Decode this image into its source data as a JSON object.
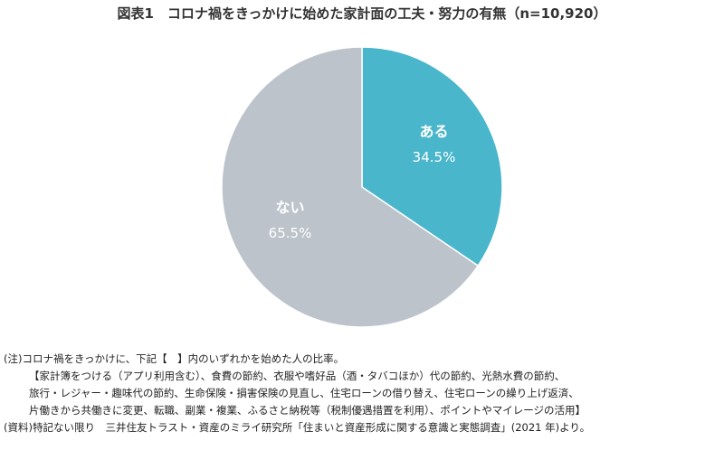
{
  "title": "図表1　コロナ禍をきっかけに始めた家計面の工夫・努力の有無（n=10,920）",
  "chart_data": {
    "type": "pie",
    "title": "図表1　コロナ禍をきっかけに始めた家計面の工夫・努力の有無（n=10,920）",
    "slices": [
      {
        "label": "ある",
        "value": 34.5,
        "value_label": "34.5%",
        "color": "#4ab6cb"
      },
      {
        "label": "ない",
        "value": 65.5,
        "value_label": "65.5%",
        "color": "#bcc3cb"
      }
    ],
    "start": "12 o'clock",
    "direction": "clockwise",
    "legend": "none"
  },
  "notes": {
    "line1": "(注)コロナ禍をきっかけに、下記【　】内のいずれかを始めた人の比率。",
    "line2": "【家計簿をつける（アプリ利用含む）、食費の節約、衣服や嗜好品（酒・タバコほか）代の節約、光熱水費の節約、",
    "line3": "旅行・レジャー・趣味代の節約、生命保険・損害保険の見直し、住宅ローンの借り替え、住宅ローンの繰り上げ返済、",
    "line4": "片働きから共働きに変更、転職、副業・複業、ふるさと納税等（税制優遇措置を利用）、ポイントやマイレージの活用】"
  },
  "source": "(資料)特記ない限り　三井住友トラスト・資産のミライ研究所「住まいと資産形成に関する意識と実態調査」(2021 年)より。"
}
